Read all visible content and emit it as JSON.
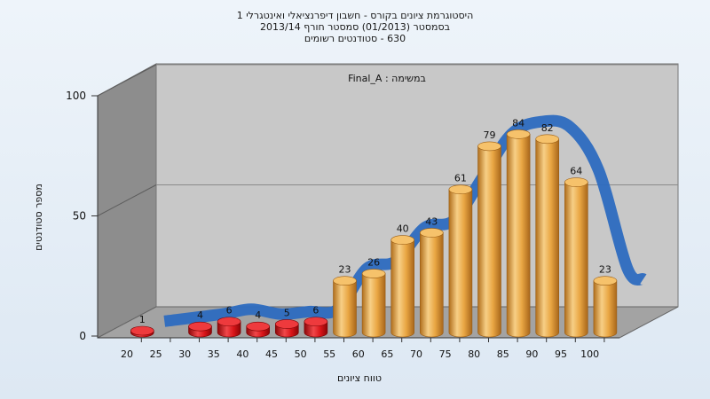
{
  "chart_data": {
    "type": "bar",
    "title_lines": [
      "היסטוגרמת ציונים בקורס - חשבון דיפרנציאלי ואינטגרלי 1",
      "בסמסטר  (01/2013)  סמסטר חורף 2013/14",
      "630 - סטודנטים רשומים"
    ],
    "annotation": "Final_A : במשימה",
    "xlabel": "טווח ציונים",
    "ylabel": "מספר סטודנטים",
    "ylim": [
      0,
      100
    ],
    "yticks": [
      0,
      50,
      100
    ],
    "x_tick_labels": [
      "20",
      "25",
      "30",
      "35",
      "40",
      "45",
      "50",
      "55",
      "60",
      "65",
      "70",
      "75",
      "80",
      "85",
      "90",
      "95",
      "100"
    ],
    "bars": [
      {
        "bin_end": 25,
        "value": 1
      },
      {
        "bin_end": 35,
        "value": 4
      },
      {
        "bin_end": 40,
        "value": 6
      },
      {
        "bin_end": 45,
        "value": 4
      },
      {
        "bin_end": 50,
        "value": 5
      },
      {
        "bin_end": 55,
        "value": 6
      },
      {
        "bin_end": 60,
        "value": 23
      },
      {
        "bin_end": 65,
        "value": 26
      },
      {
        "bin_end": 70,
        "value": 40
      },
      {
        "bin_end": 75,
        "value": 43
      },
      {
        "bin_end": 80,
        "value": 61
      },
      {
        "bin_end": 85,
        "value": 79
      },
      {
        "bin_end": 90,
        "value": 84
      },
      {
        "bin_end": 95,
        "value": 82
      },
      {
        "bin_end": 100,
        "value": 64
      },
      {
        "bin_end": 105,
        "value": 23
      }
    ],
    "fail_threshold": 55,
    "colors": {
      "fail": "#d81418",
      "pass": "#e7a43e",
      "trend": "#2d6bc0",
      "plot_back": "#c7c7c7",
      "plot_floor": "#9a9a9a",
      "plot_side": "#8a8a8a"
    },
    "grid": true,
    "legend": "none"
  }
}
